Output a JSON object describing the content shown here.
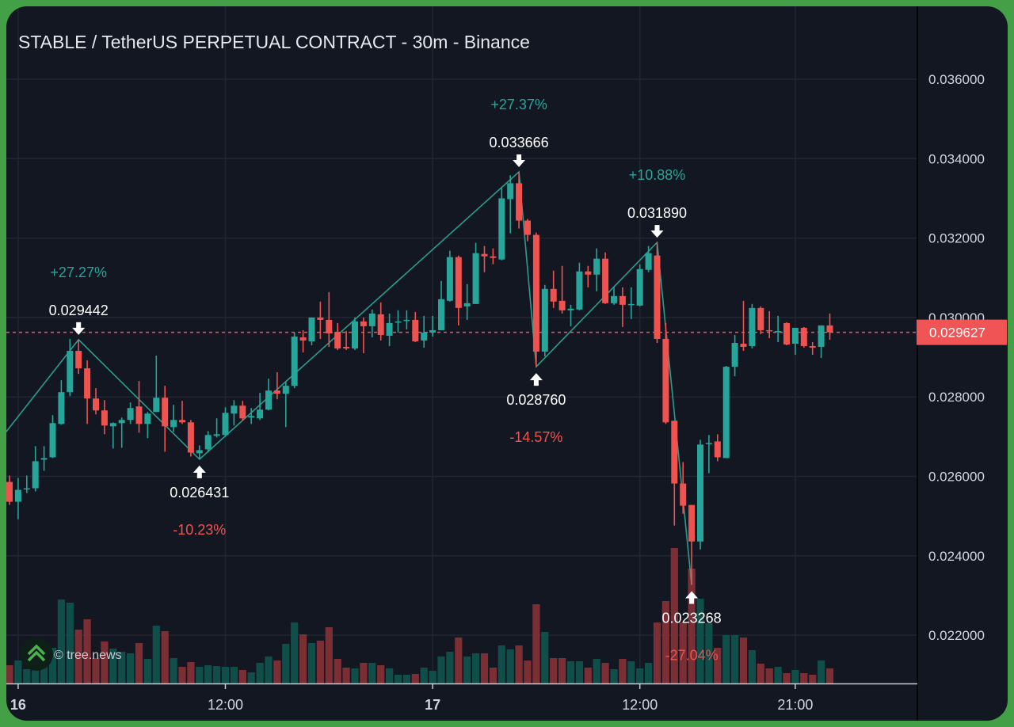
{
  "header": {
    "title": "STABLE / TetherUS PERPETUAL CONTRACT - 30m - Binance"
  },
  "watermark": {
    "text": "© tree.news",
    "icon": "tree-chevrons-icon"
  },
  "colors": {
    "background": "#131722",
    "frame": "#43a047",
    "grid": "#222632",
    "up": "#26a69a",
    "down": "#ef5350",
    "volume_up": "#0f4e49",
    "volume_down": "#7b2f35",
    "zigzag": "#2a9d8f",
    "current_price": "#f05454"
  },
  "chart_data": {
    "type": "candlestick",
    "interval": "30m",
    "ylim": [
      0.0212,
      0.0375
    ],
    "grid": true,
    "y_ticks": [
      "0.036000",
      "0.034000",
      "0.032000",
      "0.030000",
      "0.028000",
      "0.026000",
      "0.024000",
      "0.022000"
    ],
    "x_ticks": [
      {
        "label": "16",
        "bold": true
      },
      {
        "label": "12:00",
        "bold": false
      },
      {
        "label": "17",
        "bold": true
      },
      {
        "label": "12:00",
        "bold": false
      },
      {
        "label": "21:00",
        "bold": false
      }
    ],
    "current_price": "0.029627",
    "candle_fields": [
      "open",
      "high",
      "low",
      "close",
      "volume_relative"
    ],
    "candles": [
      [
        0.02586,
        0.02602,
        0.02528,
        0.02536,
        23
      ],
      [
        0.02536,
        0.02596,
        0.02492,
        0.02566,
        29
      ],
      [
        0.02568,
        0.02602,
        0.02558,
        0.0257,
        18
      ],
      [
        0.0257,
        0.02676,
        0.02562,
        0.02638,
        17
      ],
      [
        0.02642,
        0.02676,
        0.02614,
        0.02646,
        23
      ],
      [
        0.02648,
        0.02754,
        0.02646,
        0.02734,
        45
      ],
      [
        0.02732,
        0.02842,
        0.0273,
        0.02812,
        106
      ],
      [
        0.02812,
        0.02946,
        0.02802,
        0.02916,
        102
      ],
      [
        0.02916,
        0.029442,
        0.02858,
        0.02872,
        68
      ],
      [
        0.02872,
        0.02892,
        0.02732,
        0.02796,
        81
      ],
      [
        0.02796,
        0.02822,
        0.02756,
        0.02766,
        32
      ],
      [
        0.02766,
        0.02792,
        0.02706,
        0.02728,
        53
      ],
      [
        0.02726,
        0.02736,
        0.0267,
        0.02734,
        44
      ],
      [
        0.02734,
        0.02748,
        0.02672,
        0.02742,
        40
      ],
      [
        0.02742,
        0.02786,
        0.02732,
        0.02772,
        38
      ],
      [
        0.02776,
        0.0284,
        0.0271,
        0.02732,
        51
      ],
      [
        0.02732,
        0.02762,
        0.02696,
        0.02758,
        31
      ],
      [
        0.02762,
        0.02904,
        0.02762,
        0.02798,
        73
      ],
      [
        0.02798,
        0.02828,
        0.02662,
        0.02726,
        66
      ],
      [
        0.02724,
        0.0278,
        0.02712,
        0.02742,
        32
      ],
      [
        0.02742,
        0.0279,
        0.02732,
        0.02736,
        21
      ],
      [
        0.02736,
        0.02742,
        0.0265,
        0.0266,
        27
      ],
      [
        0.02658,
        0.02678,
        0.026431,
        0.02666,
        21
      ],
      [
        0.02668,
        0.02714,
        0.0266,
        0.02704,
        23
      ],
      [
        0.02702,
        0.02746,
        0.02698,
        0.02706,
        22
      ],
      [
        0.02704,
        0.02774,
        0.027,
        0.0276,
        21
      ],
      [
        0.02758,
        0.02792,
        0.02728,
        0.02778,
        21
      ],
      [
        0.02778,
        0.0279,
        0.0274,
        0.02746,
        17
      ],
      [
        0.02748,
        0.02772,
        0.02732,
        0.02752,
        14
      ],
      [
        0.02746,
        0.0281,
        0.02742,
        0.02768,
        26
      ],
      [
        0.02768,
        0.02846,
        0.02766,
        0.02816,
        34
      ],
      [
        0.02816,
        0.02862,
        0.02794,
        0.02808,
        29
      ],
      [
        0.02808,
        0.02838,
        0.02724,
        0.02828,
        50
      ],
      [
        0.02828,
        0.02962,
        0.02822,
        0.02952,
        77
      ],
      [
        0.0295,
        0.02968,
        0.02912,
        0.02942,
        62
      ],
      [
        0.0294,
        0.03,
        0.0293,
        0.03,
        51
      ],
      [
        0.03,
        0.0304,
        0.02946,
        0.02994,
        54
      ],
      [
        0.02994,
        0.03064,
        0.02926,
        0.0296,
        71
      ],
      [
        0.02964,
        0.02986,
        0.02918,
        0.02922,
        31
      ],
      [
        0.02926,
        0.02966,
        0.02918,
        0.02922,
        20
      ],
      [
        0.02922,
        0.03,
        0.02918,
        0.0299,
        19
      ],
      [
        0.0299,
        0.03,
        0.0291,
        0.02978,
        26
      ],
      [
        0.02978,
        0.0302,
        0.0295,
        0.0301,
        26
      ],
      [
        0.03008,
        0.03038,
        0.02942,
        0.02956,
        23
      ],
      [
        0.02954,
        0.0301,
        0.02928,
        0.02986,
        19
      ],
      [
        0.02988,
        0.03018,
        0.02962,
        0.0299,
        11
      ],
      [
        0.02992,
        0.03018,
        0.0297,
        0.02994,
        11
      ],
      [
        0.02994,
        0.03014,
        0.02938,
        0.0294,
        12
      ],
      [
        0.02942,
        0.03004,
        0.02924,
        0.02962,
        20
      ],
      [
        0.02962,
        0.03004,
        0.02952,
        0.02968,
        16
      ],
      [
        0.02968,
        0.03092,
        0.02968,
        0.03046,
        34
      ],
      [
        0.03042,
        0.03168,
        0.0304,
        0.03152,
        40
      ],
      [
        0.03152,
        0.03156,
        0.0298,
        0.03024,
        58
      ],
      [
        0.03028,
        0.03084,
        0.02994,
        0.03036,
        34
      ],
      [
        0.03034,
        0.03188,
        0.03034,
        0.03162,
        38
      ],
      [
        0.0316,
        0.0318,
        0.03114,
        0.03154,
        38
      ],
      [
        0.03154,
        0.03174,
        0.03134,
        0.0315,
        20
      ],
      [
        0.03146,
        0.03326,
        0.03144,
        0.033,
        48
      ],
      [
        0.03298,
        0.03358,
        0.03212,
        0.03338,
        43
      ],
      [
        0.03338,
        0.033666,
        0.03224,
        0.03244,
        48
      ],
      [
        0.03244,
        0.03248,
        0.03192,
        0.03208,
        29
      ],
      [
        0.03208,
        0.03214,
        0.02876,
        0.02914,
        100
      ],
      [
        0.02914,
        0.03082,
        0.02902,
        0.03072,
        65
      ],
      [
        0.03072,
        0.03118,
        0.03024,
        0.0304,
        32
      ],
      [
        0.03042,
        0.0313,
        0.0301,
        0.03018,
        32
      ],
      [
        0.03018,
        0.03032,
        0.02978,
        0.03022,
        28
      ],
      [
        0.0302,
        0.03138,
        0.03018,
        0.03116,
        28
      ],
      [
        0.03116,
        0.0313,
        0.03076,
        0.03108,
        20
      ],
      [
        0.03108,
        0.03174,
        0.03066,
        0.03148,
        31
      ],
      [
        0.03148,
        0.03164,
        0.03034,
        0.03036,
        26
      ],
      [
        0.03036,
        0.03078,
        0.03032,
        0.03054,
        18
      ],
      [
        0.03054,
        0.03076,
        0.02976,
        0.03032,
        31
      ],
      [
        0.03032,
        0.03076,
        0.02996,
        0.03034,
        28
      ],
      [
        0.0303,
        0.03134,
        0.03028,
        0.03122,
        19
      ],
      [
        0.0312,
        0.0318,
        0.03114,
        0.03162,
        26
      ],
      [
        0.03156,
        0.03189,
        0.02936,
        0.02946,
        77
      ],
      [
        0.02946,
        0.02986,
        0.02732,
        0.02736,
        104
      ],
      [
        0.0274,
        0.0274,
        0.02476,
        0.02582,
        171
      ],
      [
        0.02582,
        0.02636,
        0.02506,
        0.02526,
        77
      ],
      [
        0.02528,
        0.02528,
        0.023268,
        0.02436,
        145
      ],
      [
        0.02436,
        0.02692,
        0.02416,
        0.0268,
        107
      ],
      [
        0.02682,
        0.02704,
        0.02608,
        0.02684,
        76
      ],
      [
        0.02688,
        0.02706,
        0.02638,
        0.02648,
        45
      ],
      [
        0.02646,
        0.02878,
        0.02646,
        0.02876,
        61
      ],
      [
        0.02876,
        0.02956,
        0.02852,
        0.02936,
        61
      ],
      [
        0.02934,
        0.03042,
        0.02916,
        0.02926,
        58
      ],
      [
        0.02928,
        0.03034,
        0.02922,
        0.03024,
        42
      ],
      [
        0.03024,
        0.03028,
        0.02958,
        0.02968,
        25
      ],
      [
        0.02968,
        0.03016,
        0.02948,
        0.02966,
        19
      ],
      [
        0.02964,
        0.03004,
        0.02938,
        0.02966,
        21
      ],
      [
        0.02986,
        0.02988,
        0.0293,
        0.02932,
        13
      ],
      [
        0.02934,
        0.02974,
        0.02906,
        0.02974,
        17
      ],
      [
        0.02974,
        0.02976,
        0.02924,
        0.02928,
        13
      ],
      [
        0.02928,
        0.02938,
        0.02906,
        0.02924,
        11
      ],
      [
        0.02926,
        0.0298,
        0.02898,
        0.0298,
        29
      ],
      [
        0.0298,
        0.0301,
        0.02944,
        0.029627,
        19
      ]
    ],
    "zigzag": [
      {
        "index": -0.4,
        "price": 0.02712
      },
      {
        "index": 8,
        "price": 0.029442,
        "label": "0.029442",
        "change": "+27.27%",
        "type": "high"
      },
      {
        "index": 22,
        "price": 0.026431,
        "label": "0.026431",
        "change": "-10.23%",
        "type": "low"
      },
      {
        "index": 59,
        "price": 0.033666,
        "label": "0.033666",
        "change": "+27.37%",
        "type": "high"
      },
      {
        "index": 61,
        "price": 0.02876,
        "label": "0.028760",
        "change": "-14.57%",
        "type": "low"
      },
      {
        "index": 75,
        "price": 0.03189,
        "label": "0.031890",
        "change": "+10.88%",
        "type": "high"
      },
      {
        "index": 79,
        "price": 0.023268,
        "label": "0.023268",
        "change": "-27.04%",
        "type": "low"
      }
    ]
  }
}
